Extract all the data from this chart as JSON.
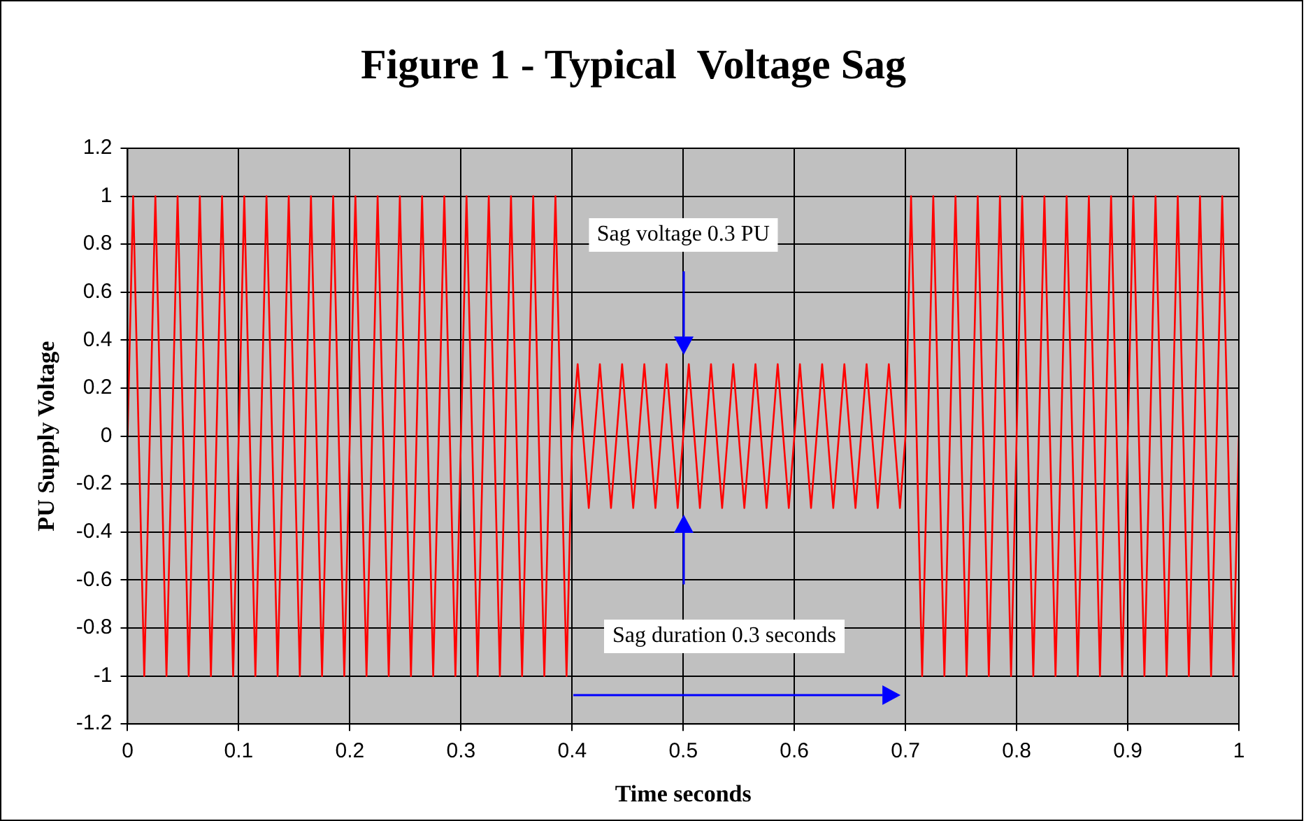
{
  "chart_data": {
    "type": "line",
    "title": "Figure 1 - Typical  Voltage Sag",
    "xlabel": "Time seconds",
    "ylabel": "PU Supply Voltage",
    "x": [
      0,
      0.005,
      0.01,
      0.015,
      0.02,
      0.025,
      0.03,
      0.035,
      0.04,
      0.045,
      0.05,
      0.055,
      0.06,
      0.065,
      0.07,
      0.075,
      0.08,
      0.085,
      0.09,
      0.095,
      0.1,
      0.105,
      0.11,
      0.115,
      0.12,
      0.125,
      0.13,
      0.135,
      0.14,
      0.145,
      0.15,
      0.155,
      0.16,
      0.165,
      0.17,
      0.175,
      0.18,
      0.185,
      0.19,
      0.195,
      0.2,
      0.205,
      0.21,
      0.215,
      0.22,
      0.225,
      0.23,
      0.235,
      0.24,
      0.245,
      0.25,
      0.255,
      0.26,
      0.265,
      0.27,
      0.275,
      0.28,
      0.285,
      0.29,
      0.295,
      0.3,
      0.305,
      0.31,
      0.315,
      0.32,
      0.325,
      0.33,
      0.335,
      0.34,
      0.345,
      0.35,
      0.355,
      0.36,
      0.365,
      0.37,
      0.375,
      0.38,
      0.385,
      0.39,
      0.395,
      0.4,
      0.405,
      0.41,
      0.415,
      0.42,
      0.425,
      0.43,
      0.435,
      0.44,
      0.445,
      0.45,
      0.455,
      0.46,
      0.465,
      0.47,
      0.475,
      0.48,
      0.485,
      0.49,
      0.495,
      0.5,
      0.505,
      0.51,
      0.515,
      0.52,
      0.525,
      0.53,
      0.535,
      0.54,
      0.545,
      0.55,
      0.555,
      0.56,
      0.565,
      0.57,
      0.575,
      0.58,
      0.585,
      0.59,
      0.595,
      0.6,
      0.605,
      0.61,
      0.615,
      0.62,
      0.625,
      0.63,
      0.635,
      0.64,
      0.645,
      0.65,
      0.655,
      0.66,
      0.665,
      0.67,
      0.675,
      0.68,
      0.685,
      0.69,
      0.695,
      0.7,
      0.705,
      0.71,
      0.715,
      0.72,
      0.725,
      0.73,
      0.735,
      0.74,
      0.745,
      0.75,
      0.755,
      0.76,
      0.765,
      0.77,
      0.775,
      0.78,
      0.785,
      0.79,
      0.795,
      0.8,
      0.805,
      0.81,
      0.815,
      0.82,
      0.825,
      0.83,
      0.835,
      0.84,
      0.845,
      0.85,
      0.855,
      0.86,
      0.865,
      0.87,
      0.875,
      0.88,
      0.885,
      0.89,
      0.895,
      0.9,
      0.905,
      0.91,
      0.915,
      0.92,
      0.925,
      0.93,
      0.935,
      0.94,
      0.945,
      0.95,
      0.955,
      0.96,
      0.965,
      0.97,
      0.975,
      0.98,
      0.985,
      0.99,
      0.995,
      1
    ],
    "series": [
      {
        "color": "#ff0000",
        "values": [
          0,
          1,
          0,
          -1,
          0,
          1,
          0,
          -1,
          0,
          1,
          0,
          -1,
          0,
          1,
          0,
          -1,
          0,
          1,
          0,
          -1,
          0,
          1,
          0,
          -1,
          0,
          1,
          0,
          -1,
          0,
          1,
          0,
          -1,
          0,
          1,
          0,
          -1,
          0,
          1,
          0,
          -1,
          0,
          1,
          0,
          -1,
          0,
          1,
          0,
          -1,
          0,
          1,
          0,
          -1,
          0,
          1,
          0,
          -1,
          0,
          1,
          0,
          -1,
          0,
          1,
          0,
          -1,
          0,
          1,
          0,
          -1,
          0,
          1,
          0,
          -1,
          0,
          1,
          0,
          -1,
          0,
          1,
          0,
          -1,
          0,
          0.3,
          0,
          -0.3,
          0,
          0.3,
          0,
          -0.3,
          0,
          0.3,
          0,
          -0.3,
          0,
          0.3,
          0,
          -0.3,
          0,
          0.3,
          0,
          -0.3,
          0,
          0.3,
          0,
          -0.3,
          0,
          0.3,
          0,
          -0.3,
          0,
          0.3,
          0,
          -0.3,
          0,
          0.3,
          0,
          -0.3,
          0,
          0.3,
          0,
          -0.3,
          0,
          0.3,
          0,
          -0.3,
          0,
          0.3,
          0,
          -0.3,
          0,
          0.3,
          0,
          -0.3,
          0,
          0.3,
          0,
          -0.3,
          0,
          0.3,
          0,
          -0.3,
          0,
          1,
          0,
          -1,
          0,
          1,
          0,
          -1,
          0,
          1,
          0,
          -1,
          0,
          1,
          0,
          -1,
          0,
          1,
          0,
          -1,
          0,
          1,
          0,
          -1,
          0,
          1,
          0,
          -1,
          0,
          1,
          0,
          -1,
          0,
          1,
          0,
          -1,
          0,
          1,
          0,
          -1,
          0,
          1,
          0,
          -1,
          0,
          1,
          0,
          -1,
          0,
          1,
          0,
          -1,
          0,
          1,
          0,
          -1,
          0,
          1,
          0,
          -1,
          0
        ]
      }
    ],
    "xlim": [
      0,
      1
    ],
    "xticks": [
      0,
      0.1,
      0.2,
      0.3,
      0.4,
      0.5,
      0.6,
      0.7,
      0.8,
      0.9,
      1
    ],
    "ylim": [
      -1.2,
      1.2
    ],
    "yticks": [
      -1.2,
      -1,
      -0.8,
      -0.6,
      -0.4,
      -0.2,
      0,
      0.2,
      0.4,
      0.6,
      0.8,
      1,
      1.2
    ],
    "grid": true,
    "marker": "none",
    "line_style": "solid",
    "annotations": [
      "Sag voltage 0.3 PU",
      "Sag duration 0.3 seconds"
    ]
  }
}
